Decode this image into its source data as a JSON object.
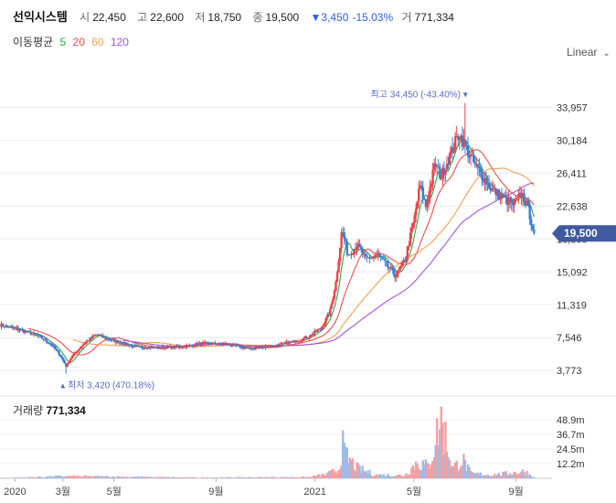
{
  "header": {
    "name": "선익시스템",
    "open_label": "시",
    "open": "22,450",
    "high_label": "고",
    "high": "22,600",
    "low_label": "저",
    "low": "18,750",
    "close_label": "종",
    "close": "19,500",
    "change_arrow": "▼",
    "change": "3,450",
    "change_pct": "-15.03%",
    "volume_label": "거",
    "volume": "771,334"
  },
  "ma_legend": {
    "title": "이동평균",
    "items": [
      {
        "label": "5",
        "color": "#31a24c"
      },
      {
        "label": "20",
        "color": "#ec4b4b"
      },
      {
        "label": "60",
        "color": "#f0a050"
      },
      {
        "label": "120",
        "color": "#a452d9"
      }
    ]
  },
  "scale_toggle": {
    "label": "Linear",
    "icon": "chevron-down-icon"
  },
  "volume_panel": {
    "label": "거래량",
    "value": "771,334"
  },
  "colors": {
    "up": "#e8454a",
    "down": "#3b7fd4",
    "up_volume": "#f2a0a2",
    "down_volume": "#9dbbe8",
    "price_tag": "#3f5a9e"
  },
  "chart_data": {
    "type": "candlestick",
    "y_ticks": [
      3773,
      7546,
      11319,
      15092,
      18865,
      22638,
      26411,
      30184,
      33957
    ],
    "y_tick_labels": [
      "3,773",
      "7,546",
      "11,319",
      "15,092",
      "18,865",
      "22,638",
      "26,411",
      "30,184",
      "33,957"
    ],
    "ylim": [
      1700,
      38400
    ],
    "x_ticks": [
      {
        "label": "2020",
        "t": 2020.0
      },
      {
        "label": "3월",
        "t": 2020.16
      },
      {
        "label": "5월",
        "t": 2020.33
      },
      {
        "label": "9월",
        "t": 2020.67
      },
      {
        "label": "2021",
        "t": 2021.0
      },
      {
        "label": "5월",
        "t": 2021.33
      },
      {
        "label": "9월",
        "t": 2021.67
      }
    ],
    "xlim": [
      2019.95,
      2021.79
    ],
    "price_points": [
      [
        2019.95,
        9000
      ],
      [
        2020.02,
        8400
      ],
      [
        2020.08,
        7700
      ],
      [
        2020.12,
        6800
      ],
      [
        2020.15,
        5600
      ],
      [
        2020.17,
        4300
      ],
      [
        2020.19,
        5400
      ],
      [
        2020.23,
        6900
      ],
      [
        2020.27,
        7900
      ],
      [
        2020.3,
        7500
      ],
      [
        2020.35,
        7000
      ],
      [
        2020.4,
        6500
      ],
      [
        2020.47,
        6400
      ],
      [
        2020.55,
        6500
      ],
      [
        2020.63,
        6900
      ],
      [
        2020.7,
        6800
      ],
      [
        2020.78,
        6300
      ],
      [
        2020.86,
        6600
      ],
      [
        2020.93,
        7100
      ],
      [
        2020.98,
        7700
      ],
      [
        2021.02,
        8600
      ],
      [
        2021.05,
        10500
      ],
      [
        2021.07,
        14000
      ],
      [
        2021.09,
        20000
      ],
      [
        2021.11,
        17000
      ],
      [
        2021.14,
        18200
      ],
      [
        2021.17,
        16500
      ],
      [
        2021.21,
        17000
      ],
      [
        2021.24,
        15800
      ],
      [
        2021.27,
        14600
      ],
      [
        2021.3,
        16500
      ],
      [
        2021.33,
        21000
      ],
      [
        2021.35,
        25000
      ],
      [
        2021.37,
        22500
      ],
      [
        2021.4,
        27500
      ],
      [
        2021.42,
        26000
      ],
      [
        2021.45,
        28500
      ],
      [
        2021.48,
        31000
      ],
      [
        2021.5,
        29500
      ],
      [
        2021.53,
        27500
      ],
      [
        2021.56,
        26000
      ],
      [
        2021.59,
        24500
      ],
      [
        2021.63,
        23500
      ],
      [
        2021.66,
        22800
      ],
      [
        2021.69,
        24000
      ],
      [
        2021.71,
        22500
      ],
      [
        2021.73,
        19500
      ]
    ],
    "last_close": 19500,
    "last_close_label": "19,500",
    "max_annotation": {
      "label": "최고 34,450 (-43.40%)",
      "t": 2021.5,
      "value": 34450
    },
    "min_annotation": {
      "label": "최저 3,420 (470.18%)",
      "t": 2020.17,
      "value": 3420
    },
    "moving_averages": [
      {
        "name": "5",
        "color": "#31a24c",
        "smooth": 3
      },
      {
        "name": "20",
        "color": "#ec4b4b",
        "smooth": 10
      },
      {
        "name": "60",
        "color": "#f0a050",
        "smooth": 26
      },
      {
        "name": "120",
        "color": "#a452d9",
        "smooth": 44,
        "start": 2020.05
      }
    ],
    "volume_ticks": [
      12200000,
      24500000,
      36700000,
      48900000
    ],
    "volume_tick_labels": [
      "12.2m",
      "24.5m",
      "36.7m",
      "48.9m"
    ],
    "volume_max": 58000000,
    "volume_points": [
      [
        2020.0,
        400000
      ],
      [
        2020.16,
        1800000
      ],
      [
        2020.3,
        1500000
      ],
      [
        2020.6,
        600000
      ],
      [
        2020.98,
        1000000
      ],
      [
        2021.04,
        3500000
      ],
      [
        2021.08,
        8000000
      ],
      [
        2021.09,
        30000000
      ],
      [
        2021.1,
        20000000
      ],
      [
        2021.14,
        9000000
      ],
      [
        2021.2,
        3000000
      ],
      [
        2021.3,
        2500000
      ],
      [
        2021.34,
        14000000
      ],
      [
        2021.38,
        10000000
      ],
      [
        2021.42,
        52000000
      ],
      [
        2021.46,
        8000000
      ],
      [
        2021.49,
        17000000
      ],
      [
        2021.52,
        4000000
      ],
      [
        2021.6,
        3000000
      ],
      [
        2021.7,
        6000000
      ],
      [
        2021.73,
        800000
      ]
    ]
  }
}
